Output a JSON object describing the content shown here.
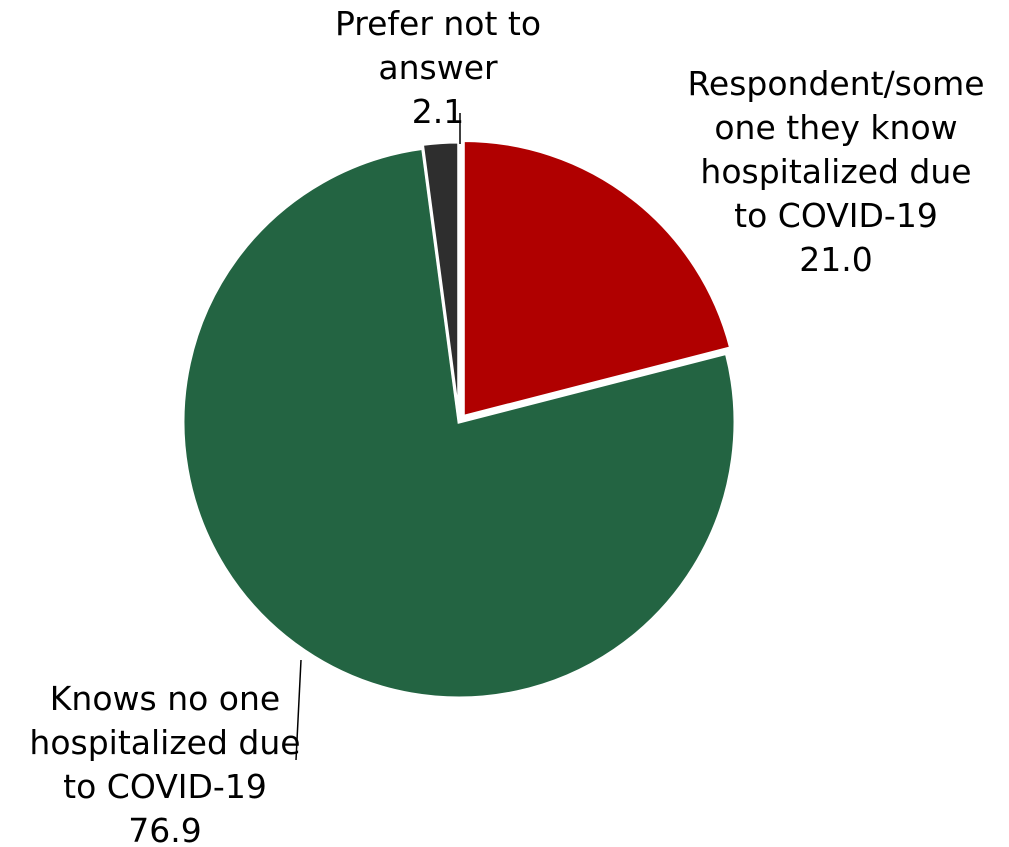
{
  "chart_data": {
    "type": "pie",
    "title": "",
    "slices": [
      {
        "label_lines": [
          "Respondent/some",
          "one they know",
          "hospitalized due",
          "to COVID-19"
        ],
        "value": 21.0,
        "value_label": "21.0",
        "color": "#b00000"
      },
      {
        "label_lines": [
          "Knows no one",
          "hospitalized due",
          "to COVID-19"
        ],
        "value": 76.9,
        "value_label": "76.9",
        "color": "#236442"
      },
      {
        "label_lines": [
          "Prefer not to",
          "answer"
        ],
        "value": 2.1,
        "value_label": "2.1",
        "color": "#2e2e2e"
      }
    ],
    "start_angle_deg": 0,
    "direction": "clockwise",
    "legend": "none"
  }
}
